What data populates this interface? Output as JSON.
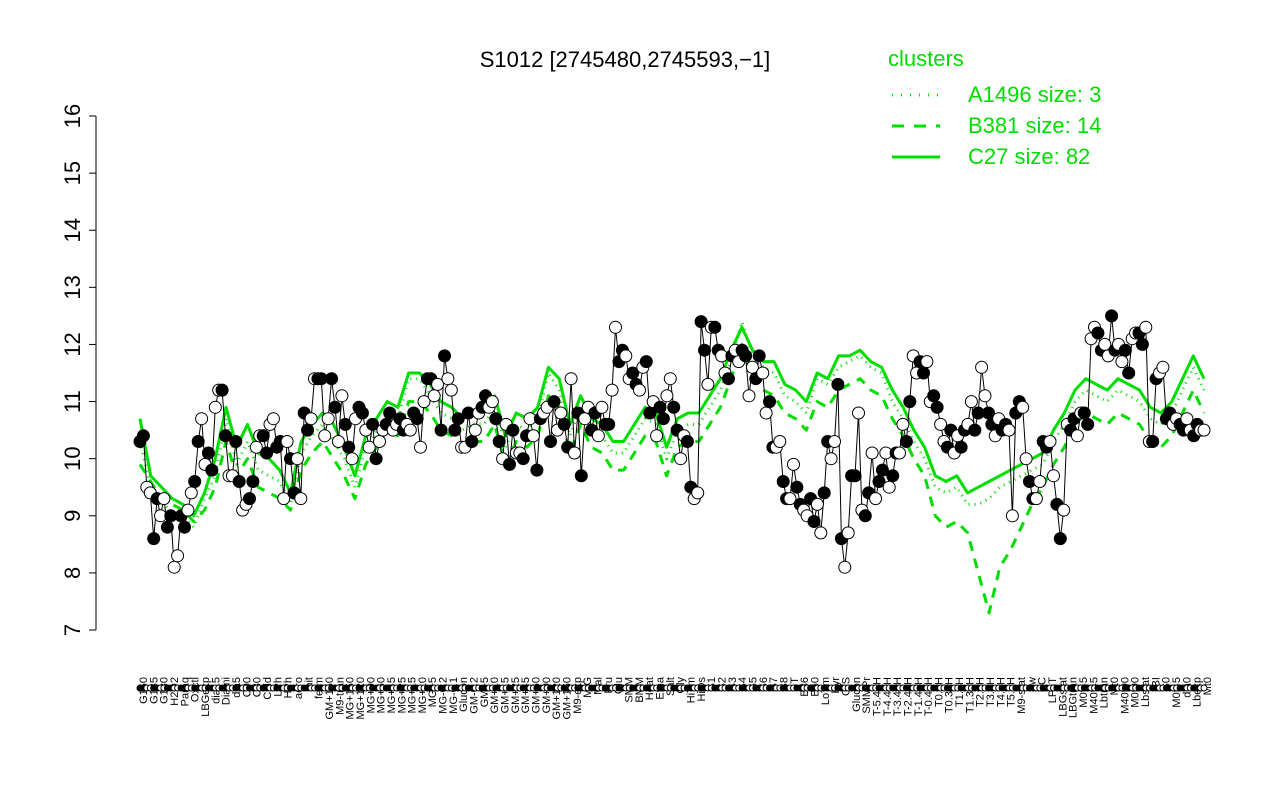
{
  "chart_data": {
    "type": "line",
    "title": "S1012 [2745480,2745593,−1]",
    "xlabel": "",
    "ylabel": "",
    "ylim": [
      7,
      16
    ],
    "yticks": [
      7,
      8,
      9,
      10,
      11,
      12,
      13,
      14,
      15,
      16
    ],
    "grid": false,
    "legend": {
      "title": "clusters",
      "placement": "top-right",
      "color": "#00dd00",
      "entries": [
        {
          "label": "A1496 size: 3",
          "style": "dotted"
        },
        {
          "label": "B381 size: 14",
          "style": "dashed"
        },
        {
          "label": "C27 size: 82",
          "style": "solid"
        }
      ]
    },
    "colors": {
      "cluster": "#00dd00",
      "points": "#000000",
      "open_fill": "#ffffff"
    },
    "tick_labels": [
      "G150",
      "G135",
      "G180",
      "H2O2",
      "Paraq",
      "Oxctl",
      "LBGexp",
      "dia15",
      "Diami",
      "dia5",
      "C90",
      "C30",
      "Cold",
      "LPh",
      "HPh",
      "aero",
      "nit",
      "ferm",
      "GM+150",
      "M9-tran",
      "MG+150",
      "MG+120",
      "MG+90",
      "MG+60",
      "MG+45",
      "MG+25",
      "MG+15",
      "MG+10",
      "MG+5",
      "MG-0.2",
      "MG-0.1",
      "Glucon",
      "GM-0.2",
      "GM+5",
      "GM+10",
      "GM+15",
      "GM+25",
      "GM+45",
      "GM+60",
      "GM+90",
      "GM+120",
      "GM+150",
      "M9-exp",
      "M/G",
      "Mal",
      "Fru",
      "Glu",
      "SMM",
      "BMM",
      "Heat",
      "Etha",
      "Salt",
      "Gly",
      "HiTm",
      "HiOs",
      "S1",
      "S2",
      "S3",
      "S4",
      "S5",
      "S6",
      "S7",
      "S8",
      "BT",
      "B36",
      "B60",
      "LoTm",
      "Pyr",
      "G/S",
      "Glucon",
      "SMMPr",
      "T-5.40H",
      "T-4.40H",
      "T-3.40H",
      "T-2.40H",
      "T-1.40H",
      "T-0.40H",
      "T0.0H",
      "T0.30H",
      "T1.0H",
      "T1.30H",
      "T2.0H",
      "T3.0H",
      "T4.0H",
      "T5.0H",
      "M9-stat",
      "Sw",
      "BC",
      "LPhT",
      "LBGstat",
      "LBGtran",
      "M0t45",
      "M40t45",
      "Lbtran",
      "Mt0",
      "M40t90",
      "M0t90",
      "Lbstat",
      "BI",
      "S0",
      "M0t45",
      "dia0",
      "Lbexp",
      "Mt0"
    ],
    "series": [
      {
        "values": [
          10.3,
          9.5,
          9.3,
          9.0,
          9.0,
          8.8,
          9.3,
          9.7,
          10.7,
          9.9,
          10.3,
          9.8,
          9.7,
          9.6,
          9.2,
          10.1,
          10.4,
          10.6,
          10.3,
          10.0,
          9.5,
          10.2,
          10.5,
          10.8,
          10.7,
          11.4,
          11.4,
          11.1,
          10.8,
          10.7,
          10.5,
          10.6,
          10.6,
          10.9,
          10.2,
          10.6,
          10.5,
          10.7,
          11.5,
          11.2,
          10.4,
          10.9,
          10.5,
          10.4,
          10.1,
          10.1,
          10.4,
          10.7,
          10.6,
          10.0,
          10.5,
          10.6,
          10.6,
          10.9,
          11.2,
          11.7,
          12.4,
          11.8,
          11.6,
          11.5,
          11.1,
          11.0,
          10.8,
          11.4,
          11.3,
          11.6,
          11.7,
          11.8,
          11.6,
          11.5,
          11.0,
          10.7,
          10.3,
          10.0,
          9.5,
          9.4,
          9.5,
          9.2,
          9.2,
          9.3,
          9.5,
          9.6,
          9.7,
          9.8,
          9.9,
          10.3,
          10.6,
          11.0,
          11.2,
          11.1,
          11.0,
          11.2,
          11.1,
          11.0,
          10.7,
          10.6,
          10.8,
          11.2,
          11.6,
          11.2
        ]
      },
      {
        "values": [
          9.9,
          9.6,
          9.3,
          9.2,
          9.1,
          8.9,
          9.1,
          9.5,
          10.3,
          9.7,
          10.0,
          9.5,
          9.4,
          9.3,
          9.1,
          9.8,
          10.1,
          10.3,
          10.0,
          9.7,
          9.3,
          9.9,
          10.2,
          10.5,
          10.4,
          11.0,
          11.0,
          10.8,
          10.5,
          10.4,
          10.2,
          10.3,
          10.3,
          10.6,
          9.9,
          10.3,
          10.2,
          10.4,
          11.1,
          10.9,
          10.1,
          10.6,
          10.2,
          10.1,
          9.8,
          9.8,
          10.1,
          10.4,
          10.3,
          9.7,
          10.2,
          10.3,
          10.3,
          10.6,
          10.9,
          11.4,
          12.0,
          11.4,
          11.2,
          11.1,
          10.8,
          10.7,
          10.5,
          11.0,
          10.9,
          11.2,
          11.3,
          11.4,
          11.2,
          11.1,
          10.7,
          10.4,
          10.0,
          9.7,
          9.0,
          8.8,
          8.9,
          8.7,
          8.0,
          7.3,
          8.1,
          8.4,
          8.8,
          9.2,
          9.5,
          9.9,
          10.2,
          10.6,
          10.8,
          10.7,
          10.6,
          10.8,
          10.7,
          10.6,
          10.3,
          10.2,
          10.4,
          10.8,
          11.2,
          10.8
        ]
      },
      {
        "values": [
          10.7,
          9.7,
          9.5,
          9.3,
          9.2,
          9.0,
          9.4,
          10.0,
          10.9,
          10.2,
          10.6,
          10.1,
          10.0,
          9.8,
          9.4,
          10.3,
          10.6,
          10.8,
          10.6,
          10.2,
          9.7,
          10.4,
          10.7,
          11.0,
          10.9,
          11.5,
          11.5,
          11.3,
          11.0,
          10.9,
          10.7,
          10.8,
          10.8,
          11.1,
          10.4,
          10.8,
          10.7,
          10.9,
          11.6,
          11.4,
          10.6,
          11.1,
          10.7,
          10.6,
          10.3,
          10.3,
          10.6,
          10.9,
          10.8,
          10.2,
          10.7,
          10.8,
          10.8,
          11.1,
          11.4,
          11.9,
          12.3,
          11.9,
          11.7,
          11.7,
          11.3,
          11.2,
          11.0,
          11.5,
          11.4,
          11.8,
          11.8,
          11.9,
          11.7,
          11.6,
          11.2,
          10.9,
          10.5,
          10.2,
          9.7,
          9.6,
          9.7,
          9.4,
          9.5,
          9.6,
          9.7,
          9.8,
          9.9,
          10.0,
          10.1,
          10.5,
          10.8,
          11.2,
          11.4,
          11.3,
          11.2,
          11.4,
          11.3,
          11.2,
          10.9,
          10.8,
          11.0,
          11.4,
          11.8,
          11.4
        ]
      }
    ],
    "points": [
      10.3,
      10.4,
      9.5,
      9.4,
      8.6,
      9.3,
      9.0,
      9.3,
      8.8,
      9.0,
      8.1,
      8.3,
      9.0,
      8.8,
      9.1,
      9.4,
      9.6,
      10.3,
      10.7,
      9.9,
      10.1,
      9.8,
      10.9,
      11.2,
      11.2,
      10.4,
      9.7,
      9.7,
      10.3,
      9.6,
      9.1,
      9.2,
      9.3,
      9.6,
      10.2,
      10.4,
      10.4,
      10.1,
      10.6,
      10.7,
      10.2,
      10.3,
      9.3,
      10.3,
      10.0,
      9.4,
      10.0,
      9.3,
      10.8,
      10.5,
      10.7,
      11.4,
      11.4,
      11.4,
      10.4,
      10.7,
      11.4,
      10.9,
      10.3,
      11.1,
      10.6,
      10.2,
      10.0,
      10.7,
      10.9,
      10.8,
      10.5,
      10.2,
      10.6,
      10.0,
      10.3,
      10.5,
      10.6,
      10.8,
      10.5,
      10.6,
      10.7,
      10.5,
      10.6,
      10.5,
      10.8,
      10.7,
      10.2,
      11.0,
      11.4,
      11.4,
      11.1,
      11.3,
      10.5,
      11.8,
      11.4,
      11.2,
      10.5,
      10.7,
      10.2,
      10.2,
      10.8,
      10.3,
      10.5,
      10.8,
      10.9,
      11.1,
      10.9,
      11.0,
      10.7,
      10.3,
      10.0,
      10.6,
      9.9,
      10.5,
      10.1,
      10.1,
      10.0,
      10.4,
      10.7,
      10.4,
      9.8,
      10.7,
      10.8,
      10.9,
      10.3,
      11.0,
      10.5,
      10.8,
      10.6,
      10.2,
      11.4,
      10.1,
      10.8,
      9.7,
      10.7,
      10.9,
      10.5,
      10.8,
      10.4,
      10.9,
      10.6,
      10.6,
      11.2,
      12.3,
      11.7,
      11.9,
      11.8,
      11.4,
      11.5,
      11.3,
      11.2,
      11.6,
      11.7,
      10.8,
      11.0,
      10.4,
      10.9,
      10.7,
      11.1,
      11.4,
      10.9,
      10.5,
      10.0,
      10.4,
      10.3,
      9.5,
      9.3,
      9.4,
      12.4,
      11.9,
      11.3,
      12.3,
      12.3,
      11.9,
      11.8,
      11.5,
      11.4,
      11.8,
      11.9,
      11.7,
      11.9,
      11.8,
      11.1,
      11.6,
      11.4,
      11.8,
      11.5,
      10.8,
      11.0,
      10.2,
      10.2,
      10.3,
      9.6,
      9.3,
      9.3,
      9.9,
      9.5,
      9.2,
      9.1,
      9.0,
      9.3,
      8.9,
      9.2,
      8.7,
      9.4,
      10.3,
      10.0,
      10.3,
      11.3,
      8.6,
      8.1,
      8.7,
      9.7,
      9.7,
      10.8,
      9.1,
      9.0,
      9.4,
      10.1,
      9.3,
      9.6,
      9.8,
      10.1,
      9.5,
      9.7,
      10.1,
      10.1,
      10.6,
      10.3,
      11.0,
      11.8,
      11.5,
      11.7,
      11.5,
      11.7,
      11.0,
      11.1,
      10.9,
      10.6,
      10.3,
      10.2,
      10.5,
      10.1,
      10.4,
      10.2,
      10.5,
      10.6,
      11.0,
      10.5,
      10.8,
      11.6,
      11.1,
      10.8,
      10.6,
      10.4,
      10.7,
      10.5,
      10.6,
      10.5,
      9.0,
      10.8,
      11.0,
      10.9,
      10.0,
      9.6,
      9.3,
      9.3,
      9.6,
      10.3,
      10.2,
      10.3,
      9.7,
      9.2,
      8.6,
      9.1,
      10.6,
      10.5,
      10.7,
      10.4,
      10.8,
      10.8,
      10.6,
      12.1,
      12.3,
      12.2,
      11.9,
      12.0,
      11.8,
      12.5,
      11.9,
      12.0,
      11.7,
      11.9,
      11.5,
      12.1,
      12.2,
      12.2,
      12.0,
      12.3,
      10.3,
      10.3,
      11.4,
      11.5,
      11.6,
      10.7,
      10.8,
      10.6,
      10.7,
      10.6,
      10.5,
      10.7,
      10.5,
      10.4,
      10.6,
      10.5,
      10.5
    ]
  }
}
